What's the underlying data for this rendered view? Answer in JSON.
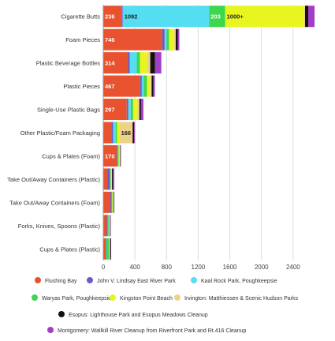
{
  "chart_data": {
    "type": "bar",
    "orientation": "horizontal",
    "stacked": true,
    "grid": true,
    "legend_position": "bottom",
    "xlim": [
      0,
      2800
    ],
    "xticks": [
      "0",
      "400",
      "800",
      "1200",
      "1600",
      "2000",
      "2400"
    ],
    "xtick_values": [
      0,
      400,
      800,
      1200,
      1600,
      2000,
      2400
    ],
    "categories": [
      "Cigarette Butts",
      "Foam Pieces",
      "Plastic Beverage Bottles",
      "Plastic Pieces",
      "Single-Use Plastic Bags",
      "Other Plastic/Foam Packaging",
      "Cups & Plates (Foam)",
      "Take Out/Away Containers (Plastic)",
      "Take Out/Away Containers (Foam)",
      "Forks, Knives, Spoons (Plastic)",
      "Cups & Plates (Plastic)"
    ],
    "series": [
      {
        "name": "Flushing Bay",
        "color": "#e8522f",
        "values": [
          236,
          746,
          314,
          467,
          297,
          110,
          170,
          55,
          90,
          45,
          30
        ],
        "labels": [
          "236",
          "746",
          "314",
          "467",
          "297",
          "",
          "170",
          "",
          "",
          "",
          ""
        ]
      },
      {
        "name": "John V. Lindsay East River Park",
        "color": "#6a5acd",
        "values": [
          10,
          30,
          20,
          20,
          20,
          15,
          10,
          30,
          15,
          10,
          5
        ],
        "labels": [
          "",
          "",
          "",
          "",
          "",
          "",
          "",
          "",
          "",
          "",
          ""
        ]
      },
      {
        "name": "Kaal Rock Park, Poughkeepsie",
        "color": "#55ddf2",
        "values": [
          1092,
          25,
          90,
          25,
          30,
          35,
          5,
          5,
          5,
          10,
          5
        ],
        "labels": [
          "1092",
          "",
          "",
          "",
          "",
          "",
          "",
          "",
          "",
          "",
          ""
        ]
      },
      {
        "name": "Waryas Park, Poughkeepsie",
        "color": "#3dd64e",
        "values": [
          203,
          30,
          40,
          40,
          30,
          15,
          10,
          5,
          5,
          5,
          30
        ],
        "labels": [
          "203",
          "",
          "",
          "",
          "",
          "",
          "",
          "",
          "",
          "",
          ""
        ]
      },
      {
        "name": "Kingston Point Beach",
        "color": "#e8f51f",
        "values": [
          1000,
          60,
          90,
          40,
          50,
          30,
          10,
          10,
          10,
          10,
          10
        ],
        "labels": [
          "1000+",
          "",
          "",
          "",
          "",
          "",
          "",
          "",
          "",
          "",
          ""
        ]
      },
      {
        "name": "Irvington: Matthiessen & Scenic Hudson Parks",
        "color": "#efd28a",
        "values": [
          10,
          25,
          40,
          20,
          30,
          166,
          10,
          5,
          5,
          5,
          5
        ],
        "labels": [
          "",
          "",
          "",
          "",
          "",
          "166",
          "",
          "",
          "",
          "",
          ""
        ]
      },
      {
        "name": "Esopus: Lighthouse Park and Esopus Meadows Cleanup",
        "color": "#111111",
        "values": [
          40,
          25,
          60,
          20,
          20,
          20,
          5,
          10,
          5,
          5,
          10
        ],
        "labels": [
          "",
          "",
          "",
          "",
          "",
          "",
          "",
          "",
          "",
          "",
          ""
        ]
      },
      {
        "name": "Montgomery: Wallkill River Cleanup from Riverfront Park and Rt.416 Cleanup",
        "color": "#a23dc4",
        "values": [
          80,
          20,
          80,
          20,
          30,
          10,
          5,
          20,
          5,
          5,
          5
        ],
        "labels": [
          "",
          "",
          "",
          "",
          "",
          "",
          "",
          "",
          "",
          "",
          ""
        ]
      }
    ]
  }
}
